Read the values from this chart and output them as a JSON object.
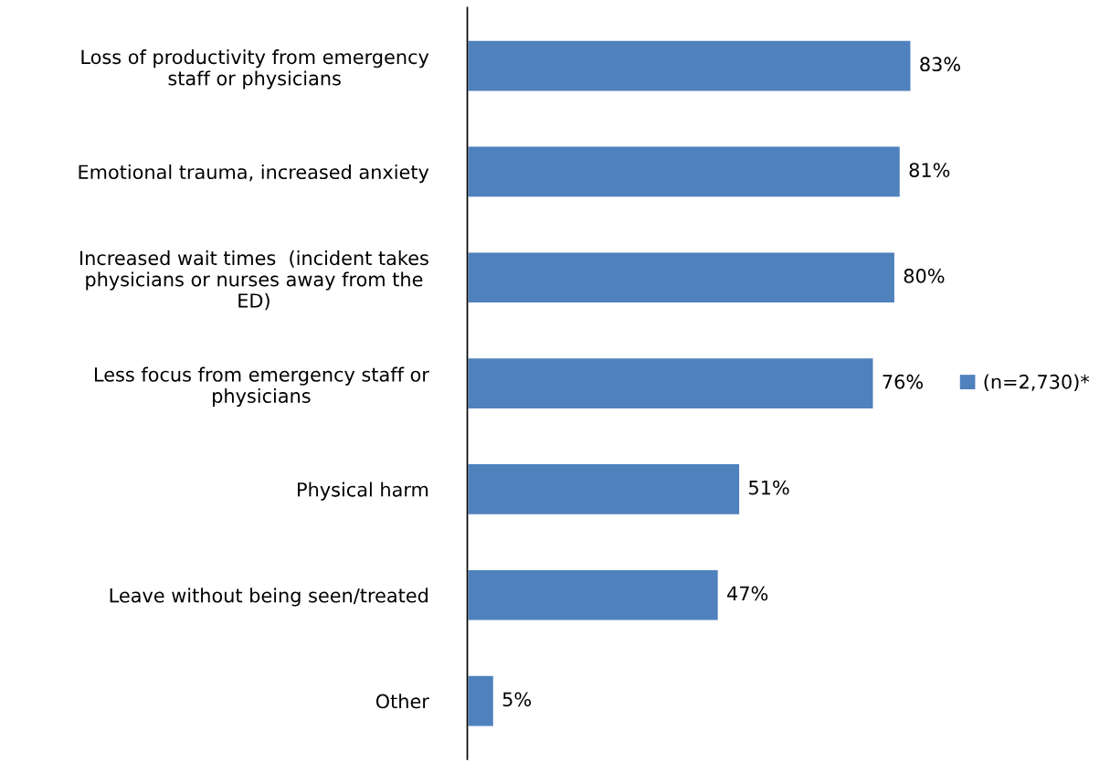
{
  "chart_data": {
    "type": "bar",
    "orientation": "horizontal",
    "categories": [
      "Loss of productivity from emergency\nstaff or physicians",
      "Emotional trauma, increased anxiety",
      "Increased wait times  (incident takes\nphysicians or nurses away from the\nED)",
      "Less focus from emergency staff or\nphysicians",
      "Physical harm",
      "Leave without being seen/treated",
      "Other"
    ],
    "series": [
      {
        "name": "(n=2,730)*",
        "color": "#4f81bd",
        "values": [
          83,
          81,
          80,
          76,
          51,
          47,
          5
        ],
        "value_labels": [
          "83%",
          "81%",
          "80%",
          "76%",
          "51%",
          "47%",
          "5%"
        ]
      }
    ],
    "legend": "right",
    "grid": false
  }
}
